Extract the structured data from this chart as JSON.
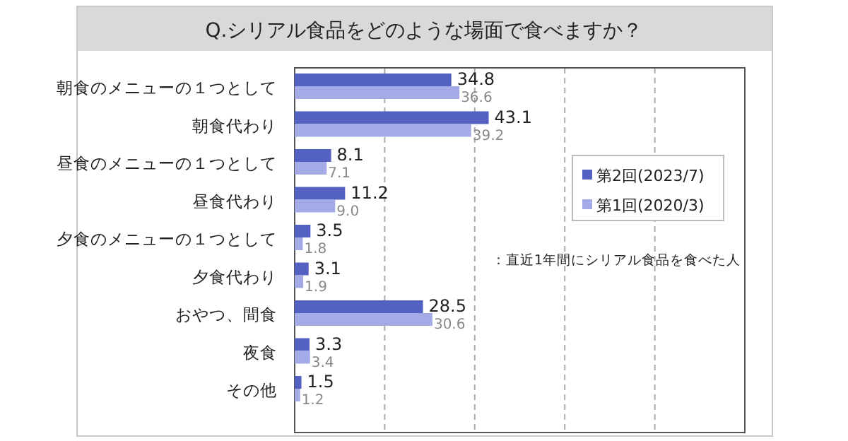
{
  "chart_data": {
    "type": "bar",
    "orientation": "horizontal",
    "title": "Q.シリアル食品をどのような場面で食べますか？",
    "categories": [
      "朝食のメニューの１つとして",
      "朝食代わり",
      "昼食のメニューの１つとして",
      "昼食代わり",
      "夕食のメニューの１つとして",
      "夕食代わり",
      "おやつ、間食",
      "夜食",
      "その他"
    ],
    "series": [
      {
        "name": "第2回(2023/7)",
        "color": "#5362c2",
        "values": [
          34.8,
          43.1,
          8.1,
          11.2,
          3.5,
          3.1,
          28.5,
          3.3,
          1.5
        ],
        "value_labels": [
          "34.8",
          "43.1",
          "8.1",
          "11.2",
          "3.5",
          "3.1",
          "28.5",
          "3.3",
          "1.5"
        ]
      },
      {
        "name": "第1回(2020/3)",
        "color": "#a3aae6",
        "values": [
          36.6,
          39.2,
          7.1,
          9.0,
          1.8,
          1.9,
          30.6,
          3.4,
          1.2
        ],
        "value_labels": [
          "36.6",
          "39.2",
          "7.1",
          "9.0",
          "1.8",
          "1.9",
          "30.6",
          "3.4",
          "1.2"
        ]
      }
    ],
    "xlim": [
      0,
      100
    ],
    "xticks": [
      {
        "value": 0,
        "label": null
      },
      {
        "value": 20,
        "label": null
      },
      {
        "value": 40,
        "label": null
      },
      {
        "value": 60,
        "label": null
      },
      {
        "value": 80,
        "label": null
      },
      {
        "value": 100,
        "label": null
      }
    ],
    "tick_labels": "y",
    "grid": "x",
    "legend": "right",
    "annotations": [
      "：直近1年間にシリアル食品を食べた人"
    ]
  }
}
